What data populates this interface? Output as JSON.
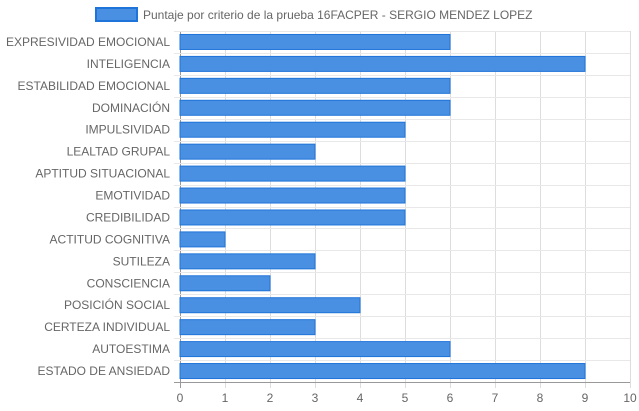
{
  "chart_data": {
    "type": "bar",
    "orientation": "horizontal",
    "categories": [
      "EXPRESIVIDAD EMOCIONAL",
      "INTELIGENCIA",
      "ESTABILIDAD EMOCIONAL",
      "DOMINACIÓN",
      "IMPULSIVIDAD",
      "LEALTAD GRUPAL",
      "APTITUD SITUACIONAL",
      "EMOTIVIDAD",
      "CREDIBILIDAD",
      "ACTITUD COGNITIVA",
      "SUTILEZA",
      "CONSCIENCIA",
      "POSICIÓN SOCIAL",
      "CERTEZA INDIVIDUAL",
      "AUTOESTIMA",
      "ESTADO DE ANSIEDAD"
    ],
    "series": [
      {
        "name": "Puntaje por criterio de la prueba 16FACPER - SERGIO MENDEZ LOPEZ",
        "values": [
          6,
          9,
          6,
          6,
          5,
          3,
          5,
          5,
          5,
          1,
          3,
          2,
          4,
          3,
          6,
          9
        ],
        "color": "#4a90e2",
        "border_color": "#1f74d9"
      }
    ],
    "xlim": [
      0,
      10
    ],
    "xticks": [
      "0",
      "1",
      "2",
      "3",
      "4",
      "5",
      "6",
      "7",
      "8",
      "9",
      "10"
    ],
    "grid": true,
    "legend_position": "top",
    "title": "",
    "xlabel": "",
    "ylabel": ""
  }
}
